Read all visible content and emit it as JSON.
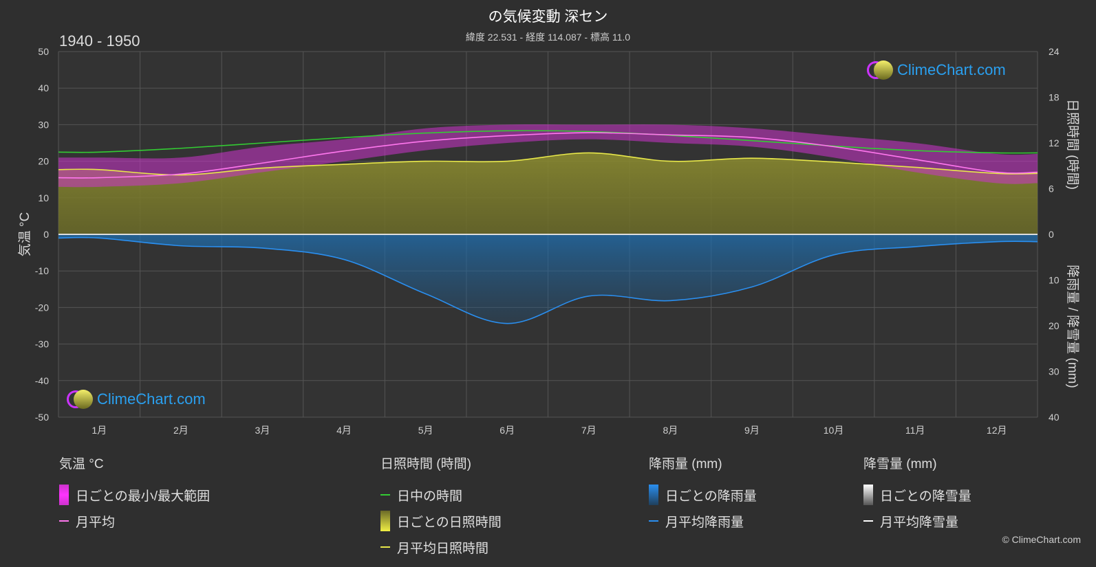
{
  "header": {
    "title": "の気候変動 深セン",
    "subtitle": "緯度 22.531 - 経度 114.087 - 標高 11.0",
    "period": "1940 - 1950"
  },
  "axes": {
    "left_title": "気温 °C",
    "right_top_title": "日照時間 (時間)",
    "right_bottom_title": "降雨量 / 降雪量 (mm)",
    "left_ticks": [
      "50",
      "40",
      "30",
      "20",
      "10",
      "0",
      "-10",
      "-20",
      "-30",
      "-40",
      "-50"
    ],
    "right_top_ticks": [
      "24",
      "18",
      "12",
      "6",
      "0"
    ],
    "right_bottom_ticks": [
      "10",
      "20",
      "30",
      "40"
    ]
  },
  "chart_data": {
    "type": "area",
    "months": [
      "1月",
      "2月",
      "3月",
      "4月",
      "5月",
      "6月",
      "7月",
      "8月",
      "9月",
      "10月",
      "11月",
      "12月"
    ],
    "temperature_axis": {
      "label": "気温 °C",
      "ylim": [
        -50,
        50
      ]
    },
    "sunshine_axis": {
      "label": "日照時間 (時間)",
      "ylim": [
        0,
        24
      ]
    },
    "precip_axis": {
      "label": "降雨量 / 降雪量 (mm)",
      "ylim": [
        0,
        40
      ]
    },
    "series": [
      {
        "name": "日中の時間",
        "axis": "sunshine",
        "color": "#33cc33",
        "values": [
          10.8,
          11.3,
          12.0,
          12.7,
          13.3,
          13.6,
          13.5,
          13.0,
          12.3,
          11.6,
          11.0,
          10.7
        ]
      },
      {
        "name": "月平均日照時間",
        "axis": "sunshine",
        "color": "#e8e84a",
        "values": [
          8.5,
          7.8,
          8.7,
          9.2,
          9.6,
          9.6,
          10.7,
          9.6,
          10.0,
          9.5,
          8.8,
          8.0
        ]
      },
      {
        "name": "月平均",
        "axis": "temperature",
        "color": "#ff77ee",
        "values": [
          15.5,
          16.5,
          19.5,
          22.8,
          25.5,
          27.0,
          27.8,
          27.2,
          26.5,
          24.0,
          20.5,
          17.0
        ]
      },
      {
        "name": "日ごとの最小/最大範囲",
        "axis": "temperature",
        "color": "#cc33cc",
        "min": [
          13,
          14,
          17,
          20,
          23,
          25,
          26,
          25,
          24,
          21,
          17,
          14
        ],
        "max": [
          21,
          21,
          24,
          26,
          29,
          30,
          30,
          30,
          29,
          27,
          25,
          22
        ]
      },
      {
        "name": "月平均降雨量",
        "axis": "precip",
        "color": "#2a8ff0",
        "values": [
          0.8,
          2.5,
          3.0,
          5.5,
          13.0,
          19.5,
          13.5,
          14.5,
          11.5,
          4.5,
          2.7,
          1.6
        ]
      }
    ]
  },
  "legend": {
    "temperature": {
      "title": "気温 °C",
      "range": "日ごとの最小/最大範囲",
      "avg": "月平均"
    },
    "sunshine": {
      "title": "日照時間 (時間)",
      "daylight": "日中の時間",
      "daily": "日ごとの日照時間",
      "avg": "月平均日照時間"
    },
    "rain": {
      "title": "降雨量 (mm)",
      "daily": "日ごとの降雨量",
      "avg": "月平均降雨量"
    },
    "snow": {
      "title": "降雪量 (mm)",
      "daily": "日ごとの降雪量",
      "avg": "月平均降雪量"
    }
  },
  "logo_text": "ClimeChart.com",
  "copyright": "© ClimeChart.com",
  "colors": {
    "background": "#2f2f2f",
    "daylight": "#33cc33",
    "sunshine": "#e8e84a",
    "temp_avg": "#ff77ee",
    "temp_range": "#cc33cc",
    "rain": "#2a8ff0",
    "snow": "#ffffff"
  }
}
